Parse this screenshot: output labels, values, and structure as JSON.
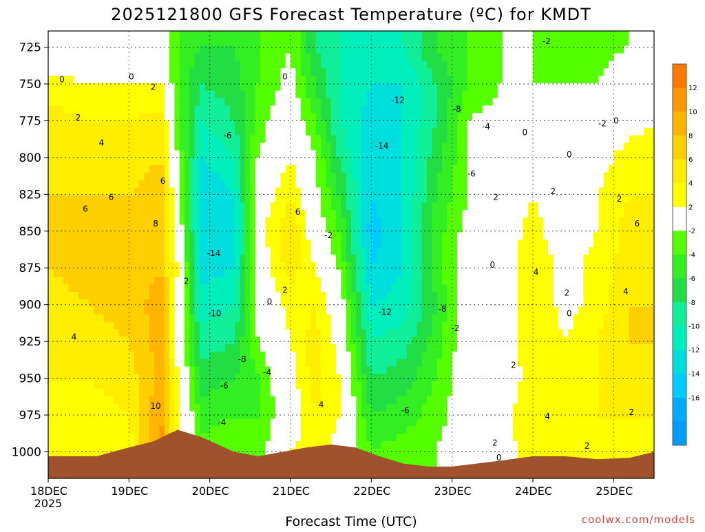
{
  "chart_data": {
    "type": "heatmap",
    "title": "2025121800 GFS Forecast Temperature (ºC) for KMDT",
    "xlabel": "Forecast Time (UTC)",
    "ylabel": "",
    "credit": "coolwx.com/models",
    "x_ticks": [
      {
        "label": "18DEC",
        "sub": "2025",
        "day": 0
      },
      {
        "label": "19DEC",
        "sub": "",
        "day": 1
      },
      {
        "label": "20DEC",
        "sub": "",
        "day": 2
      },
      {
        "label": "21DEC",
        "sub": "",
        "day": 3
      },
      {
        "label": "22DEC",
        "sub": "",
        "day": 4
      },
      {
        "label": "23DEC",
        "sub": "",
        "day": 5
      },
      {
        "label": "24DEC",
        "sub": "",
        "day": 6
      },
      {
        "label": "25DEC",
        "sub": "",
        "day": 7
      }
    ],
    "xlim_days": [
      0,
      7.5
    ],
    "y_ticks": [
      725,
      750,
      775,
      800,
      825,
      850,
      875,
      900,
      925,
      950,
      975,
      1000
    ],
    "ylim_hpa": [
      714,
      1018
    ],
    "grid": true,
    "legend": "right",
    "colorbar": {
      "labels": [
        12,
        10,
        8,
        6,
        4,
        2,
        -2,
        -4,
        -6,
        -8,
        -10,
        -12,
        -14,
        -16
      ],
      "colors": [
        "#ff7800",
        "#ff9700",
        "#ffb400",
        "#ffd000",
        "#ffee00",
        "#ffff00",
        "#ffffff",
        "#55ff00",
        "#33ee22",
        "#22dd44",
        "#11ee99",
        "#00eebb",
        "#00dddd",
        "#00ccff",
        "#00aaff",
        "#0099ff"
      ]
    },
    "series": [
      {
        "day": 0.0,
        "values": [
          -2,
          3,
          5,
          6,
          6,
          6,
          6,
          5,
          5,
          4,
          3,
          2
        ]
      },
      {
        "day": 0.5,
        "values": [
          0,
          2,
          4,
          5,
          6,
          7,
          7,
          6,
          5,
          4,
          3,
          2
        ]
      },
      {
        "day": 1.0,
        "values": [
          0,
          2,
          4,
          5,
          6,
          7,
          7,
          7,
          6,
          5,
          4,
          3
        ]
      },
      {
        "day": 1.4,
        "values": [
          0,
          2,
          5,
          6,
          7,
          8,
          8,
          9,
          9,
          9,
          10,
          11
        ]
      },
      {
        "day": 1.6,
        "values": [
          -4,
          -4,
          -3,
          -2,
          0,
          1,
          2,
          1,
          1,
          2,
          3,
          4
        ]
      },
      {
        "day": 1.9,
        "values": [
          -6,
          -8,
          -10,
          -12,
          -14,
          -14,
          -13,
          -11,
          -9,
          -7,
          -5,
          -3
        ]
      },
      {
        "day": 2.3,
        "values": [
          -6,
          -7,
          -8,
          -10,
          -12,
          -14,
          -12,
          -10,
          -8,
          -6,
          -4,
          -2
        ]
      },
      {
        "day": 2.6,
        "values": [
          -4,
          -4,
          -3,
          -2,
          0,
          1,
          0,
          -1,
          -2,
          -4,
          -4,
          -3
        ]
      },
      {
        "day": 3.0,
        "values": [
          -2,
          -1,
          0,
          2,
          4,
          6,
          5,
          3,
          2,
          1,
          0,
          2
        ]
      },
      {
        "day": 3.3,
        "values": [
          -8,
          -6,
          -4,
          -2,
          -1,
          0,
          2,
          4,
          5,
          5,
          4,
          3
        ]
      },
      {
        "day": 3.6,
        "values": [
          -10,
          -10,
          -10,
          -8,
          -6,
          -4,
          -2,
          0,
          1,
          2,
          2,
          1
        ]
      },
      {
        "day": 4.0,
        "values": [
          -12,
          -12,
          -13,
          -14,
          -14,
          -15,
          -14,
          -12,
          -10,
          -8,
          -6,
          -4
        ]
      },
      {
        "day": 4.4,
        "values": [
          -10,
          -12,
          -12,
          -12,
          -12,
          -12,
          -12,
          -11,
          -9,
          -7,
          -5,
          -3
        ]
      },
      {
        "day": 4.8,
        "values": [
          -6,
          -8,
          -8,
          -7,
          -6,
          -5,
          -5,
          -6,
          -5,
          -4,
          -3,
          -2
        ]
      },
      {
        "day": 5.2,
        "values": [
          -4,
          -4,
          -2,
          -2,
          -2,
          -1,
          0,
          0,
          0,
          0,
          0,
          0
        ]
      },
      {
        "day": 5.6,
        "values": [
          -2,
          -2,
          -1,
          0,
          0,
          0,
          0,
          0,
          0,
          0,
          1,
          1
        ]
      },
      {
        "day": 6.0,
        "values": [
          -2,
          -2,
          -1,
          0,
          2,
          3,
          4,
          4,
          4,
          3,
          4,
          3
        ]
      },
      {
        "day": 6.4,
        "values": [
          -3,
          -2,
          -1,
          0,
          0,
          0,
          1,
          1,
          2,
          3,
          4,
          3
        ]
      },
      {
        "day": 6.8,
        "values": [
          -3,
          -2,
          0,
          1,
          2,
          2,
          3,
          3,
          4,
          4,
          4,
          3
        ]
      },
      {
        "day": 7.2,
        "values": [
          -2,
          0,
          1,
          3,
          4,
          5,
          5,
          6,
          6,
          5,
          4,
          3
        ]
      },
      {
        "day": 7.5,
        "values": [
          -2,
          0,
          2,
          3,
          4,
          5,
          6,
          6,
          6,
          5,
          4,
          3
        ]
      }
    ],
    "contour_labels": [
      {
        "text": "0",
        "day": 0.17,
        "hpa": 747
      },
      {
        "text": "0",
        "day": 1.03,
        "hpa": 745
      },
      {
        "text": "2",
        "day": 1.3,
        "hpa": 752
      },
      {
        "text": "2",
        "day": 0.37,
        "hpa": 773
      },
      {
        "text": "4",
        "day": 0.66,
        "hpa": 790
      },
      {
        "text": "6",
        "day": 1.42,
        "hpa": 816
      },
      {
        "text": "6",
        "day": 0.78,
        "hpa": 827
      },
      {
        "text": "6",
        "day": 0.46,
        "hpa": 835
      },
      {
        "text": "8",
        "day": 1.33,
        "hpa": 845
      },
      {
        "text": "4",
        "day": 0.32,
        "hpa": 922
      },
      {
        "text": "10",
        "day": 1.33,
        "hpa": 969
      },
      {
        "text": "2",
        "day": 1.71,
        "hpa": 884
      },
      {
        "text": "-6",
        "day": 2.22,
        "hpa": 785
      },
      {
        "text": "-14",
        "day": 2.05,
        "hpa": 865
      },
      {
        "text": "-10",
        "day": 2.06,
        "hpa": 906
      },
      {
        "text": "-8",
        "day": 2.4,
        "hpa": 937
      },
      {
        "text": "-6",
        "day": 2.18,
        "hpa": 955
      },
      {
        "text": "-4",
        "day": 2.15,
        "hpa": 980
      },
      {
        "text": "-4",
        "day": 2.71,
        "hpa": 946
      },
      {
        "text": "0",
        "day": 2.74,
        "hpa": 898
      },
      {
        "text": "2",
        "day": 2.93,
        "hpa": 890
      },
      {
        "text": "0",
        "day": 2.93,
        "hpa": 745
      },
      {
        "text": "6",
        "day": 3.09,
        "hpa": 837
      },
      {
        "text": "-2",
        "day": 3.47,
        "hpa": 853
      },
      {
        "text": "4",
        "day": 3.38,
        "hpa": 968
      },
      {
        "text": "-12",
        "day": 4.33,
        "hpa": 761
      },
      {
        "text": "-14",
        "day": 4.13,
        "hpa": 792
      },
      {
        "text": "-8",
        "day": 5.06,
        "hpa": 767
      },
      {
        "text": "-12",
        "day": 4.17,
        "hpa": 905
      },
      {
        "text": "-8",
        "day": 4.88,
        "hpa": 903
      },
      {
        "text": "-6",
        "day": 4.42,
        "hpa": 972
      },
      {
        "text": "-2",
        "day": 5.04,
        "hpa": 916
      },
      {
        "text": "-4",
        "day": 5.42,
        "hpa": 779
      },
      {
        "text": "-6",
        "day": 5.24,
        "hpa": 811
      },
      {
        "text": "-2",
        "day": 6.17,
        "hpa": 721
      },
      {
        "text": "0",
        "day": 5.9,
        "hpa": 783
      },
      {
        "text": "0",
        "day": 6.45,
        "hpa": 798
      },
      {
        "text": "-2",
        "day": 6.86,
        "hpa": 777
      },
      {
        "text": "0",
        "day": 7.03,
        "hpa": 775
      },
      {
        "text": "2",
        "day": 5.54,
        "hpa": 827
      },
      {
        "text": "2",
        "day": 6.25,
        "hpa": 823
      },
      {
        "text": "0",
        "day": 5.5,
        "hpa": 873
      },
      {
        "text": "4",
        "day": 6.04,
        "hpa": 878
      },
      {
        "text": "2",
        "day": 6.42,
        "hpa": 892
      },
      {
        "text": "0",
        "day": 6.45,
        "hpa": 906
      },
      {
        "text": "2",
        "day": 5.76,
        "hpa": 941
      },
      {
        "text": "4",
        "day": 6.18,
        "hpa": 976
      },
      {
        "text": "2",
        "day": 5.53,
        "hpa": 994
      },
      {
        "text": "0",
        "day": 5.58,
        "hpa": 1004
      },
      {
        "text": "2",
        "day": 6.67,
        "hpa": 996
      },
      {
        "text": "2",
        "day": 7.07,
        "hpa": 828
      },
      {
        "text": "6",
        "day": 7.29,
        "hpa": 845
      },
      {
        "text": "4",
        "day": 7.15,
        "hpa": 891
      },
      {
        "text": "2",
        "day": 7.22,
        "hpa": 973
      }
    ]
  }
}
